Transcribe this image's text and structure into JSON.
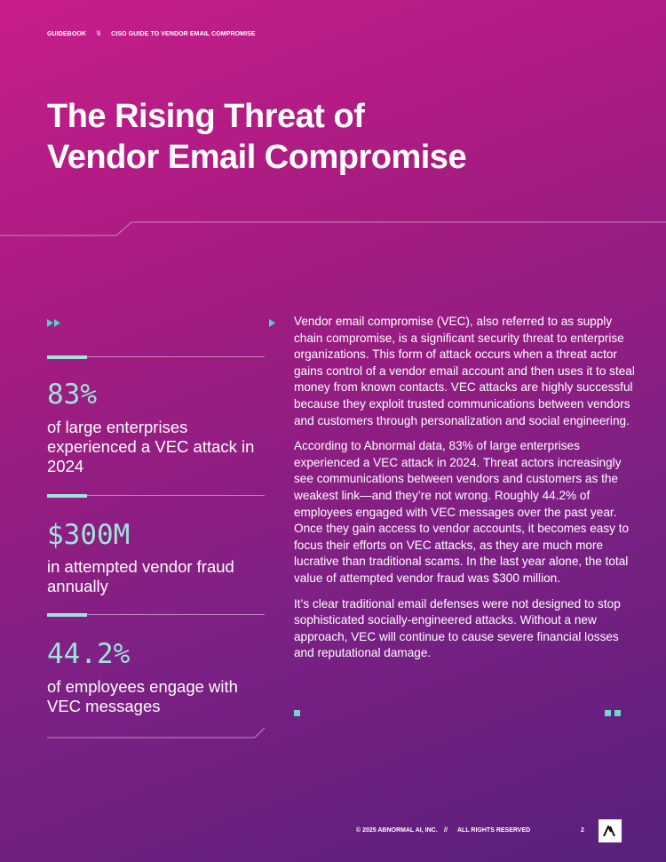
{
  "header": {
    "section": "GUIDEBOOK",
    "separator": "\\\\",
    "doc_title": "CISO GUIDE TO VENDOR EMAIL COMPROMISE"
  },
  "title_line1": "The Rising Threat of",
  "title_line2": "Vendor Email Compromise",
  "stats": [
    {
      "value": "83%",
      "description": "of large enterprises experienced a VEC attack in 2024"
    },
    {
      "value": "$300M",
      "description": "in attempted vendor fraud annually"
    },
    {
      "value": "44.2%",
      "description": "of employees engage with VEC messages"
    }
  ],
  "body": [
    "Vendor email compromise (VEC), also referred to as supply chain compromise, is a significant security threat to enterprise organizations. This form of attack occurs when a threat actor gains control of a vendor email account and then uses it to steal money from known contacts. VEC attacks are highly successful because they exploit trusted communications between vendors and customers through personalization and social engineering.",
    "According to Abnormal data, 83% of large enterprises experienced a VEC attack in 2024. Threat actors increasingly see communications between vendors and customers as the weakest link—and they’re not wrong. Roughly 44.2% of employees engaged with VEC messages over the past year. Once they gain access to vendor accounts, it becomes easy to focus their efforts on VEC attacks, as they are much more lucrative than traditional scams. In the last year alone, the total value of attempted vendor fraud was $300 million.",
    "It’s clear traditional email defenses were not designed to stop sophisticated socially-engineered attacks. Without a new approach, VEC will continue to cause severe financial losses and reputational damage."
  ],
  "footer": {
    "copyright": "© 2025 ABNORMAL AI, INC.",
    "separator": "//",
    "rights": "ALL RIGHTS RESERVED",
    "page_number": "2"
  },
  "colors": {
    "accent": "#4fd1c5",
    "bar": "#9fe3dc"
  }
}
